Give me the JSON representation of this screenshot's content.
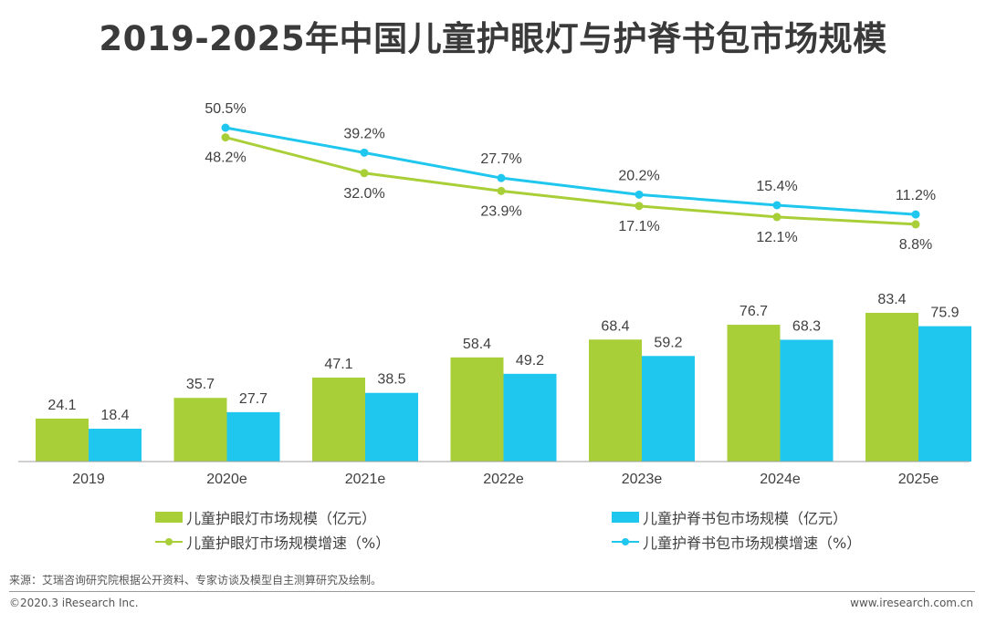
{
  "title": "2019-2025年中国儿童护眼灯与护脊书包市场规模",
  "colors": {
    "green": "#a9cf38",
    "blue": "#1fc7ee"
  },
  "chart_data": {
    "type": "bar",
    "categories": [
      "2019",
      "2020e",
      "2021e",
      "2022e",
      "2023e",
      "2024e",
      "2025e"
    ],
    "series": [
      {
        "name": "儿童护眼灯市场规模（亿元）",
        "type": "bar",
        "color": "#a9cf38",
        "values": [
          24.1,
          35.7,
          47.1,
          58.4,
          68.4,
          76.7,
          83.4
        ]
      },
      {
        "name": "儿童护脊书包市场规模（亿元）",
        "type": "bar",
        "color": "#1fc7ee",
        "values": [
          18.4,
          27.7,
          38.5,
          49.2,
          59.2,
          68.3,
          75.9
        ]
      }
    ],
    "growth_series": [
      {
        "name": "儿童护眼灯市场规模增速（%）",
        "type": "line",
        "color": "#a9cf38",
        "values": [
          48.2,
          32.0,
          23.9,
          17.1,
          12.1,
          8.8
        ],
        "labels": [
          "48.2%",
          "32.0%",
          "23.9%",
          "17.1%",
          "12.1%",
          "8.8%"
        ]
      },
      {
        "name": "儿童护脊书包市场规模增速（%）",
        "type": "line",
        "color": "#1fc7ee",
        "values": [
          50.5,
          39.2,
          27.7,
          20.2,
          15.4,
          11.2
        ],
        "labels": [
          "50.5%",
          "39.2%",
          "27.7%",
          "20.2%",
          "15.4%",
          "11.2%"
        ]
      }
    ],
    "legend_position": "bottom"
  },
  "legend": {
    "green_bar": "儿童护眼灯市场规模（亿元）",
    "blue_bar": "儿童护脊书包市场规模（亿元）",
    "green_line": "儿童护眼灯市场规模增速（%）",
    "blue_line": "儿童护脊书包市场规模增速（%）"
  },
  "footer": {
    "source": "来源：艾瑞咨询研究院根据公开资料、专家访谈及模型自主测算研究及绘制。",
    "copyright": "©2020.3 iResearch Inc.",
    "website": "www.iresearch.com.cn"
  }
}
